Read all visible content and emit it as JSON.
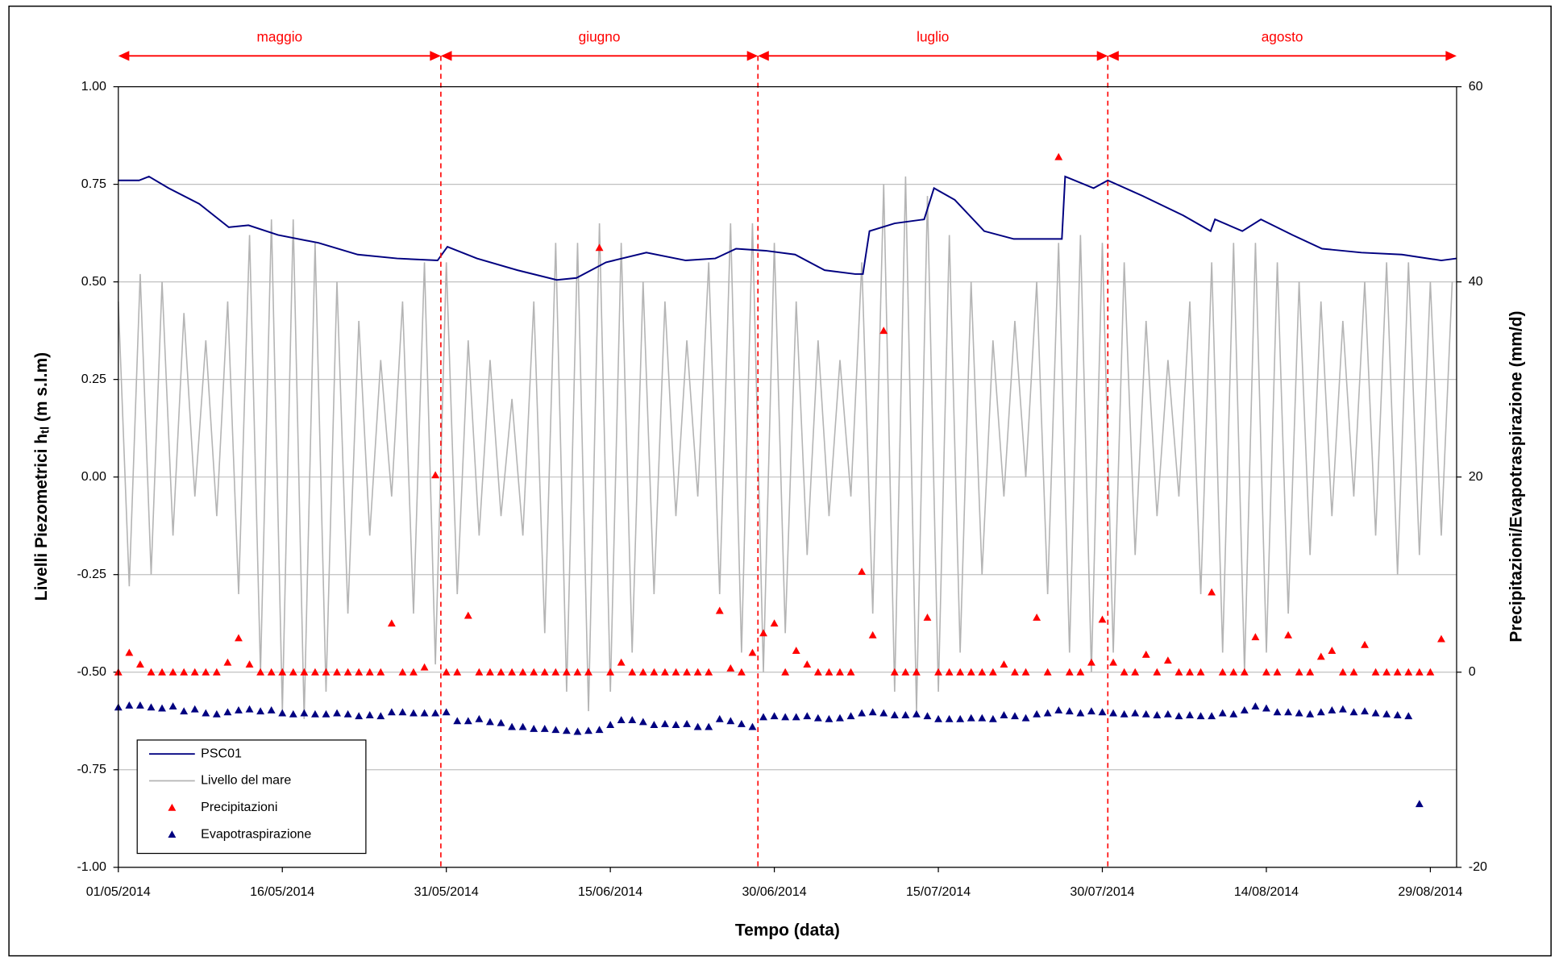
{
  "chart_data": {
    "type": "line",
    "xlabel": "Tempo (data)",
    "ylabel": {
      "text": "Livelli Piezometrici h",
      "sub": "tl",
      "unit": " (m s.l.m)"
    },
    "y2label": "Precipitazioni/Evapotraspirazione (mm/d)",
    "xlim": [
      0,
      122.4
    ],
    "xticks": [
      {
        "value": 0,
        "label": "01/05/2014"
      },
      {
        "value": 15,
        "label": "16/05/2014"
      },
      {
        "value": 30,
        "label": "31/05/2014"
      },
      {
        "value": 45,
        "label": "15/06/2014"
      },
      {
        "value": 60,
        "label": "30/06/2014"
      },
      {
        "value": 75,
        "label": "15/07/2014"
      },
      {
        "value": 90,
        "label": "30/07/2014"
      },
      {
        "value": 105,
        "label": "14/08/2014"
      },
      {
        "value": 120,
        "label": "29/08/2014"
      }
    ],
    "ylim": [
      -1,
      1
    ],
    "yticks": [
      {
        "value": -1,
        "label": "-1.00"
      },
      {
        "value": -0.75,
        "label": "-0.75"
      },
      {
        "value": -0.5,
        "label": "-0.50"
      },
      {
        "value": -0.25,
        "label": "-0.25"
      },
      {
        "value": 0,
        "label": "0.00"
      },
      {
        "value": 0.25,
        "label": "0.25"
      },
      {
        "value": 0.5,
        "label": "0.50"
      },
      {
        "value": 0.75,
        "label": "0.75"
      },
      {
        "value": 1,
        "label": "1.00"
      }
    ],
    "y2lim": [
      -20,
      60
    ],
    "y2ticks": [
      -20,
      0,
      20,
      40,
      60
    ],
    "grid": true,
    "legend": "lower left",
    "month_spans": [
      {
        "label": "maggio",
        "from": 0,
        "to": 29.5
      },
      {
        "label": "giugno",
        "from": 29.5,
        "to": 58.5
      },
      {
        "label": "luglio",
        "from": 58.5,
        "to": 90.5
      },
      {
        "label": "agosto",
        "from": 90.5,
        "to": 122.4
      }
    ],
    "month_color": "#ff0000",
    "series": [
      {
        "name": "PSC01",
        "color": "#000080",
        "type": "line",
        "x": [
          0,
          1.9,
          2.8,
          4.6,
          7.4,
          10.1,
          11.9,
          14.6,
          18.3,
          21.9,
          25.5,
          29.2,
          30.1,
          32.8,
          36.5,
          40.1,
          41.9,
          44.6,
          48.3,
          51.9,
          54.6,
          56.5,
          59.2,
          61.9,
          64.6,
          67.4,
          68.1,
          68.7,
          71,
          73.7,
          74.6,
          76.5,
          79.2,
          81.9,
          84.6,
          86.3,
          86.6,
          89.2,
          90.5,
          93.7,
          97.4,
          99.9,
          100.3,
          102.8,
          104.5,
          107.4,
          110.1,
          113.7,
          117.4,
          121,
          122.4
        ],
        "values": [
          0.76,
          0.76,
          0.77,
          0.74,
          0.7,
          0.64,
          0.645,
          0.62,
          0.6,
          0.57,
          0.56,
          0.555,
          0.59,
          0.56,
          0.53,
          0.505,
          0.51,
          0.55,
          0.575,
          0.555,
          0.56,
          0.585,
          0.58,
          0.57,
          0.53,
          0.52,
          0.52,
          0.63,
          0.65,
          0.66,
          0.74,
          0.71,
          0.63,
          0.61,
          0.61,
          0.61,
          0.77,
          0.74,
          0.76,
          0.72,
          0.67,
          0.63,
          0.66,
          0.63,
          0.66,
          0.62,
          0.585,
          0.575,
          0.57,
          0.555,
          0.56
        ]
      },
      {
        "name": "Livello del mare",
        "color": "#b4b4b4",
        "type": "line",
        "values": [
          0.45,
          -0.28,
          0.52,
          -0.25,
          0.5,
          -0.15,
          0.42,
          -0.05,
          0.35,
          -0.1,
          0.45,
          -0.3,
          0.62,
          -0.5,
          0.66,
          -0.6,
          0.66,
          -0.62,
          0.6,
          -0.55,
          0.5,
          -0.35,
          0.4,
          -0.15,
          0.3,
          -0.05,
          0.45,
          -0.35,
          0.55,
          -0.48,
          0.55,
          -0.3,
          0.35,
          -0.15,
          0.3,
          -0.1,
          0.2,
          -0.15,
          0.45,
          -0.4,
          0.6,
          -0.55,
          0.6,
          -0.6,
          0.65,
          -0.55,
          0.6,
          -0.45,
          0.5,
          -0.3,
          0.45,
          -0.1,
          0.35,
          -0.05,
          0.55,
          -0.3,
          0.65,
          -0.45,
          0.65,
          -0.5,
          0.6,
          -0.4,
          0.45,
          -0.2,
          0.35,
          -0.1,
          0.3,
          -0.05,
          0.55,
          -0.35,
          0.75,
          -0.55,
          0.77,
          -0.6,
          0.72,
          -0.55,
          0.62,
          -0.45,
          0.5,
          -0.25,
          0.35,
          -0.05,
          0.4,
          0,
          0.5,
          -0.3,
          0.6,
          -0.45,
          0.62,
          -0.5,
          0.6,
          -0.45,
          0.55,
          -0.2,
          0.4,
          -0.1,
          0.3,
          -0.05,
          0.45,
          -0.3,
          0.55,
          -0.45,
          0.6,
          -0.5,
          0.6,
          -0.45,
          0.55,
          -0.35,
          0.5,
          -0.2,
          0.45,
          -0.1,
          0.4,
          -0.05,
          0.5,
          -0.15,
          0.55,
          -0.25,
          0.55,
          -0.2,
          0.5,
          -0.15,
          0.5
        ]
      },
      {
        "name": "Precipitazioni",
        "color": "#ff0000",
        "type": "scatter",
        "marker": "triangle",
        "axis": "y2",
        "values": [
          0,
          2,
          0.8,
          0,
          0,
          0,
          0,
          0,
          0,
          0,
          1,
          3.5,
          0.8,
          0,
          0,
          0,
          0,
          0,
          0,
          0,
          0,
          0,
          0,
          0,
          0,
          5,
          0,
          0,
          0.5,
          20.2,
          0,
          0,
          5.8,
          0,
          0,
          0,
          0,
          0,
          0,
          0,
          0,
          0,
          0,
          0,
          43.5,
          0,
          1,
          0,
          0,
          0,
          0,
          0,
          0,
          0,
          0,
          6.3,
          0.4,
          0,
          2,
          4,
          5,
          0,
          2.2,
          0.8,
          0,
          0,
          0,
          0,
          10.3,
          3.8,
          35,
          0,
          0,
          0,
          5.6,
          0,
          0,
          0,
          0,
          0,
          0,
          0.8,
          0,
          0,
          5.6,
          0,
          52.8,
          0,
          0,
          1,
          5.4,
          1,
          0,
          0,
          1.8,
          0,
          1.2,
          0,
          0,
          0,
          8.2,
          0,
          0,
          0,
          3.6,
          0,
          0,
          3.8,
          0,
          0,
          1.6,
          2.2,
          0,
          0,
          2.8,
          0,
          0,
          0,
          0,
          0,
          0,
          3.4
        ]
      },
      {
        "name": "Evapotraspirazione",
        "color": "#000080",
        "type": "scatter",
        "marker": "triangle",
        "axis": "y2",
        "values": [
          -3.6,
          -3.4,
          -3.4,
          -3.6,
          -3.7,
          -3.5,
          -4,
          -3.8,
          -4.2,
          -4.3,
          -4.1,
          -3.9,
          -3.8,
          -4,
          -3.9,
          -4.2,
          -4.3,
          -4.2,
          -4.3,
          -4.3,
          -4.2,
          -4.3,
          -4.5,
          -4.4,
          -4.5,
          -4.1,
          -4.1,
          -4.2,
          -4.2,
          -4.2,
          -4.1,
          -5,
          -5,
          -4.8,
          -5.1,
          -5.2,
          -5.6,
          -5.6,
          -5.8,
          -5.8,
          -5.9,
          -6,
          -6.1,
          -6,
          -5.9,
          -5.4,
          -4.9,
          -4.9,
          -5.1,
          -5.4,
          -5.3,
          -5.4,
          -5.3,
          -5.6,
          -5.6,
          -4.8,
          -5,
          -5.3,
          -5.6,
          -4.6,
          -4.5,
          -4.6,
          -4.6,
          -4.5,
          -4.7,
          -4.8,
          -4.7,
          -4.5,
          -4.2,
          -4.1,
          -4.2,
          -4.4,
          -4.4,
          -4.3,
          -4.5,
          -4.8,
          -4.8,
          -4.8,
          -4.7,
          -4.7,
          -4.8,
          -4.4,
          -4.5,
          -4.7,
          -4.3,
          -4.2,
          -3.9,
          -4,
          -4.2,
          -4,
          -4.1,
          -4.2,
          -4.3,
          -4.2,
          -4.3,
          -4.4,
          -4.3,
          -4.5,
          -4.4,
          -4.5,
          -4.5,
          -4.2,
          -4.3,
          -3.9,
          -3.5,
          -3.7,
          -4.1,
          -4.1,
          -4.2,
          -4.3,
          -4.1,
          -3.9,
          -3.8,
          -4.1,
          -4,
          -4.2,
          -4.3,
          -4.4,
          -4.5,
          -13.5
        ]
      }
    ]
  }
}
